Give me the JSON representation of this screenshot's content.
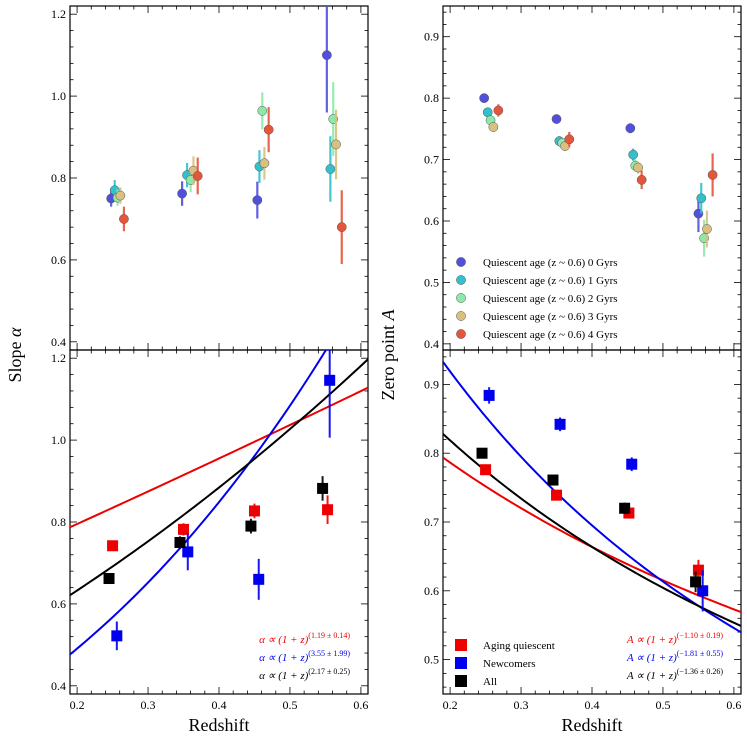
{
  "colors": {
    "age0": "#5050dd",
    "age1": "#33c0cc",
    "age2": "#8ee8a8",
    "age3": "#d8c080",
    "age4": "#e5553a",
    "aging": "#ee0000",
    "newcomers": "#0000ee",
    "all": "#000000"
  },
  "chart_data": [
    {
      "id": "slope-top",
      "type": "scatter",
      "xlim": [
        0.19,
        0.61
      ],
      "ylim": [
        0.38,
        1.22
      ],
      "yticks": [
        "0.4",
        "0.6",
        "0.8",
        "1.0",
        "1.2"
      ],
      "series": [
        {
          "name": "Quiescent age (z ~ 0.6) 0 Gyrs",
          "color_key": "age0",
          "points": [
            [
              0.248,
              0.75,
              0.02
            ],
            [
              0.348,
              0.762,
              0.03
            ],
            [
              0.454,
              0.746,
              0.045
            ],
            [
              0.552,
              1.1,
              0.14
            ]
          ]
        },
        {
          "name": "Quiescent age (z ~ 0.6) 1 Gyrs",
          "color_key": "age1",
          "points": [
            [
              0.253,
              0.77,
              0.025
            ],
            [
              0.355,
              0.807,
              0.03
            ],
            [
              0.457,
              0.828,
              0.04
            ],
            [
              0.557,
              0.822,
              0.08
            ]
          ]
        },
        {
          "name": "Quiescent age (z ~ 0.6) 2 Gyrs",
          "color_key": "age2",
          "points": [
            [
              0.257,
              0.752,
              0.02
            ],
            [
              0.36,
              0.795,
              0.03
            ],
            [
              0.461,
              0.964,
              0.045
            ],
            [
              0.561,
              0.944,
              0.09
            ]
          ]
        },
        {
          "name": "Quiescent age (z ~ 0.6) 3 Gyrs",
          "color_key": "age3",
          "points": [
            [
              0.261,
              0.757,
              0.02
            ],
            [
              0.364,
              0.818,
              0.035
            ],
            [
              0.464,
              0.836,
              0.04
            ],
            [
              0.565,
              0.882,
              0.085
            ]
          ]
        },
        {
          "name": "Quiescent age (z ~ 0.6) 4 Gyrs",
          "color_key": "age4",
          "points": [
            [
              0.266,
              0.7,
              0.03
            ],
            [
              0.37,
              0.805,
              0.045
            ],
            [
              0.47,
              0.918,
              0.055
            ],
            [
              0.573,
              0.68,
              0.09
            ]
          ]
        }
      ]
    },
    {
      "id": "slope-bottom",
      "type": "scatter",
      "xlim": [
        0.19,
        0.61
      ],
      "ylim": [
        0.38,
        1.22
      ],
      "xlabel": "Redshift",
      "xticks": [
        "0.2",
        "0.3",
        "0.4",
        "0.5",
        "0.6"
      ],
      "yticks": [
        "0.4",
        "0.6",
        "0.8",
        "1.0",
        "1.2"
      ],
      "series": [
        {
          "name": "Aging quiescent",
          "color_key": "aging",
          "points": [
            [
              0.25,
              0.742,
              0.012
            ],
            [
              0.35,
              0.782,
              0.015
            ],
            [
              0.45,
              0.827,
              0.018
            ],
            [
              0.553,
              0.83,
              0.035
            ]
          ],
          "fit": {
            "amp": 0.64,
            "exp": 1.19
          }
        },
        {
          "name": "Newcomers",
          "color_key": "newcomers",
          "points": [
            [
              0.256,
              0.522,
              0.035
            ],
            [
              0.356,
              0.727,
              0.045
            ],
            [
              0.456,
              0.66,
              0.05
            ],
            [
              0.556,
              1.146,
              0.14
            ]
          ],
          "fit": {
            "amp": 0.257,
            "exp": 3.55
          }
        },
        {
          "name": "All",
          "color_key": "all",
          "points": [
            [
              0.245,
              0.662,
              0.012
            ],
            [
              0.345,
              0.75,
              0.015
            ],
            [
              0.445,
              0.79,
              0.018
            ],
            [
              0.546,
              0.882,
              0.03
            ]
          ],
          "fit": {
            "amp": 0.426,
            "exp": 2.17
          }
        }
      ],
      "annotations": [
        {
          "text": "α ∝ (1 + z)",
          "exp": "(1.19 ± 0.14)",
          "color_key": "aging"
        },
        {
          "text": "α ∝ (1 + z)",
          "exp": "(3.55 ± 1.99)",
          "color_key": "newcomers"
        },
        {
          "text": "α ∝ (1 + z)",
          "exp": "(2.17 ± 0.25)",
          "color_key": "all"
        }
      ]
    },
    {
      "id": "zp-top",
      "type": "scatter",
      "xlim": [
        0.19,
        0.61
      ],
      "ylim": [
        0.39,
        0.95
      ],
      "yticks": [
        "0.4",
        "0.5",
        "0.6",
        "0.7",
        "0.8",
        "0.9"
      ],
      "series": [
        {
          "name": "Quiescent age (z ~ 0.6) 0 Gyrs",
          "color_key": "age0",
          "points": [
            [
              0.248,
              0.8,
              0.005
            ],
            [
              0.35,
              0.766,
              0.006
            ],
            [
              0.454,
              0.751,
              0.008
            ],
            [
              0.55,
              0.612,
              0.03
            ]
          ]
        },
        {
          "name": "Quiescent age (z ~ 0.6) 1 Gyrs",
          "color_key": "age1",
          "points": [
            [
              0.253,
              0.777,
              0.006
            ],
            [
              0.354,
              0.73,
              0.008
            ],
            [
              0.458,
              0.708,
              0.01
            ],
            [
              0.554,
              0.637,
              0.025
            ]
          ]
        },
        {
          "name": "Quiescent age (z ~ 0.6) 2 Gyrs",
          "color_key": "age2",
          "points": [
            [
              0.257,
              0.764,
              0.006
            ],
            [
              0.358,
              0.727,
              0.008
            ],
            [
              0.461,
              0.69,
              0.01
            ],
            [
              0.558,
              0.572,
              0.03
            ]
          ]
        },
        {
          "name": "Quiescent age (z ~ 0.6) 3 Gyrs",
          "color_key": "age3",
          "points": [
            [
              0.261,
              0.753,
              0.006
            ],
            [
              0.362,
              0.722,
              0.008
            ],
            [
              0.465,
              0.687,
              0.01
            ],
            [
              0.562,
              0.587,
              0.03
            ]
          ]
        },
        {
          "name": "Quiescent age (z ~ 0.6) 4 Gyrs",
          "color_key": "age4",
          "points": [
            [
              0.268,
              0.78,
              0.01
            ],
            [
              0.368,
              0.733,
              0.012
            ],
            [
              0.47,
              0.667,
              0.015
            ],
            [
              0.57,
              0.675,
              0.035
            ]
          ]
        }
      ],
      "legend": {
        "position": "lower-left",
        "entries": [
          {
            "label": "Quiescent age (z ~ 0.6) 0 Gyrs",
            "color_key": "age0"
          },
          {
            "label": "Quiescent age (z ~ 0.6) 1 Gyrs",
            "color_key": "age1"
          },
          {
            "label": "Quiescent age (z ~ 0.6) 2 Gyrs",
            "color_key": "age2"
          },
          {
            "label": "Quiescent age (z ~ 0.6) 3 Gyrs",
            "color_key": "age3"
          },
          {
            "label": "Quiescent age (z ~ 0.6) 4 Gyrs",
            "color_key": "age4"
          }
        ]
      }
    },
    {
      "id": "zp-bottom",
      "type": "scatter",
      "xlim": [
        0.19,
        0.61
      ],
      "ylim": [
        0.45,
        0.95
      ],
      "xlabel": "Redshift",
      "xticks": [
        "0.2",
        "0.3",
        "0.4",
        "0.5",
        "0.6"
      ],
      "yticks": [
        "0.5",
        "0.6",
        "0.7",
        "0.8",
        "0.9"
      ],
      "series": [
        {
          "name": "Aging quiescent",
          "color_key": "aging",
          "points": [
            [
              0.25,
              0.776,
              0.006
            ],
            [
              0.35,
              0.739,
              0.006
            ],
            [
              0.452,
              0.713,
              0.008
            ],
            [
              0.55,
              0.63,
              0.015
            ]
          ],
          "fit": {
            "amp": 0.961,
            "exp": -1.1
          }
        },
        {
          "name": "Newcomers",
          "color_key": "newcomers",
          "points": [
            [
              0.255,
              0.884,
              0.012
            ],
            [
              0.355,
              0.842,
              0.01
            ],
            [
              0.456,
              0.784,
              0.01
            ],
            [
              0.556,
              0.6,
              0.03
            ]
          ],
          "fit": {
            "amp": 1.278,
            "exp": -1.81
          }
        },
        {
          "name": "All",
          "color_key": "all",
          "points": [
            [
              0.245,
              0.8,
              0.006
            ],
            [
              0.345,
              0.761,
              0.006
            ],
            [
              0.446,
              0.72,
              0.008
            ],
            [
              0.546,
              0.613,
              0.015
            ]
          ],
          "fit": {
            "amp": 1.049,
            "exp": -1.36
          }
        }
      ],
      "annotations": [
        {
          "text": "A ∝ (1 + z)",
          "exp": "(−1.10 ± 0.19)",
          "color_key": "aging"
        },
        {
          "text": "A ∝ (1 + z)",
          "exp": "(−1.81 ± 0.55)",
          "color_key": "newcomers"
        },
        {
          "text": "A ∝ (1 + z)",
          "exp": "(−1.36 ± 0.26)",
          "color_key": "all"
        }
      ],
      "legend": {
        "position": "lower-left",
        "entries": [
          {
            "label": "Aging quiescent",
            "color_key": "aging"
          },
          {
            "label": "Newcomers",
            "color_key": "newcomers"
          },
          {
            "label": "All",
            "color_key": "all"
          }
        ]
      }
    }
  ],
  "labels": {
    "left_ylabel_main": "Slope ",
    "left_ylabel_sym": "α",
    "right_ylabel_main": "Zero point ",
    "right_ylabel_sym": "A"
  }
}
